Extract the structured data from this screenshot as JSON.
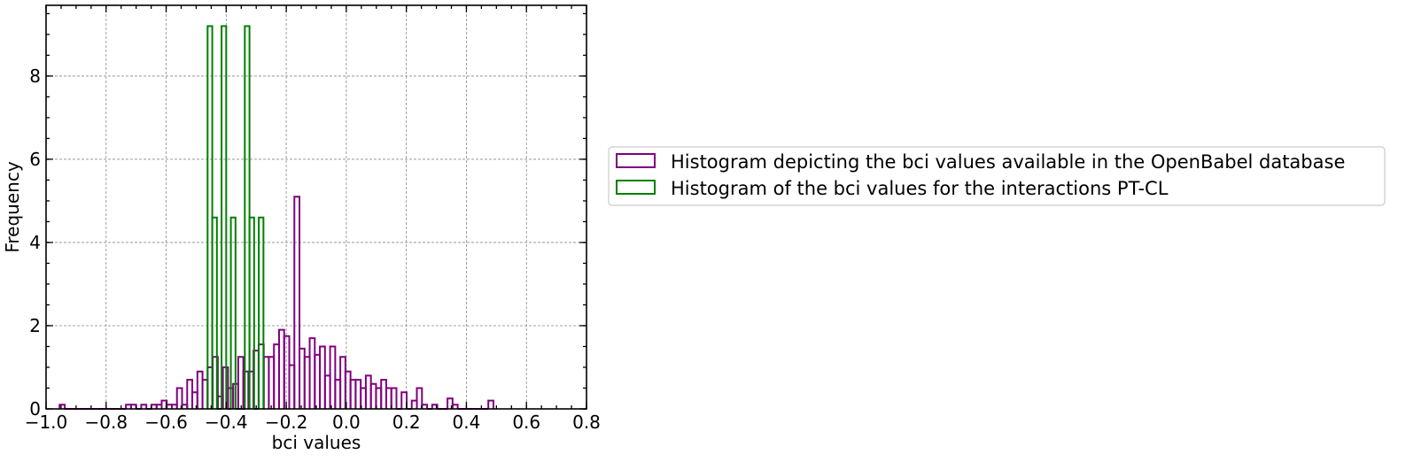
{
  "chart_data": {
    "type": "histogram",
    "xlabel": "bci values",
    "ylabel": "Frequency",
    "xlim": [
      -1.0,
      0.8
    ],
    "ylim": [
      0,
      9.7
    ],
    "x_ticks": [
      "−1.0",
      "−0.8",
      "−0.6",
      "−0.4",
      "−0.2",
      "0.0",
      "0.2",
      "0.4",
      "0.6",
      "0.8"
    ],
    "x_tick_values": [
      -1.0,
      -0.8,
      -0.6,
      -0.4,
      -0.2,
      0.0,
      0.2,
      0.4,
      0.6,
      0.8
    ],
    "y_ticks": [
      "0",
      "2",
      "4",
      "6",
      "8"
    ],
    "y_tick_values": [
      0,
      2,
      4,
      6,
      8
    ],
    "grid": true,
    "legend_position": "outside-right",
    "series": [
      {
        "name": "Histogram depicting the bci values available in the OpenBabel database",
        "color": "#800080",
        "bins_start": -0.955,
        "bin_width": 0.017,
        "values": [
          0.1,
          0,
          0,
          0,
          0,
          0,
          0,
          0,
          0,
          0,
          0,
          0,
          0,
          0.1,
          0.1,
          0,
          0.1,
          0,
          0.1,
          0.1,
          0.2,
          0.1,
          0.1,
          0.5,
          0.1,
          0.7,
          0.4,
          0.9,
          0.7,
          1.0,
          1.25,
          0.3,
          1.0,
          0.5,
          0.6,
          1.25,
          0.9,
          0.9,
          1.4,
          1.55,
          1.25,
          1.25,
          1.55,
          1.9,
          1.75,
          1.05,
          5.1,
          1.45,
          1.25,
          1.7,
          1.3,
          1.5,
          0.8,
          1.5,
          0.7,
          1.25,
          0.9,
          0.7,
          0.7,
          0.5,
          0.8,
          0.6,
          0.5,
          0.7,
          0.5,
          0.5,
          0,
          0.4,
          0,
          0.2,
          0.5,
          0.1,
          0,
          0.1,
          0,
          0,
          0.25,
          0.1,
          0,
          0,
          0,
          0,
          0,
          0,
          0.2
        ]
      },
      {
        "name": "Histogram of the bci values for the interactions PT-CL",
        "color": "#008000",
        "bins_start": -0.462,
        "bin_width": 0.0155,
        "values": [
          9.2,
          4.6,
          0,
          9.2,
          0,
          4.6,
          0,
          0,
          9.2,
          4.6,
          0,
          4.6
        ]
      }
    ]
  }
}
